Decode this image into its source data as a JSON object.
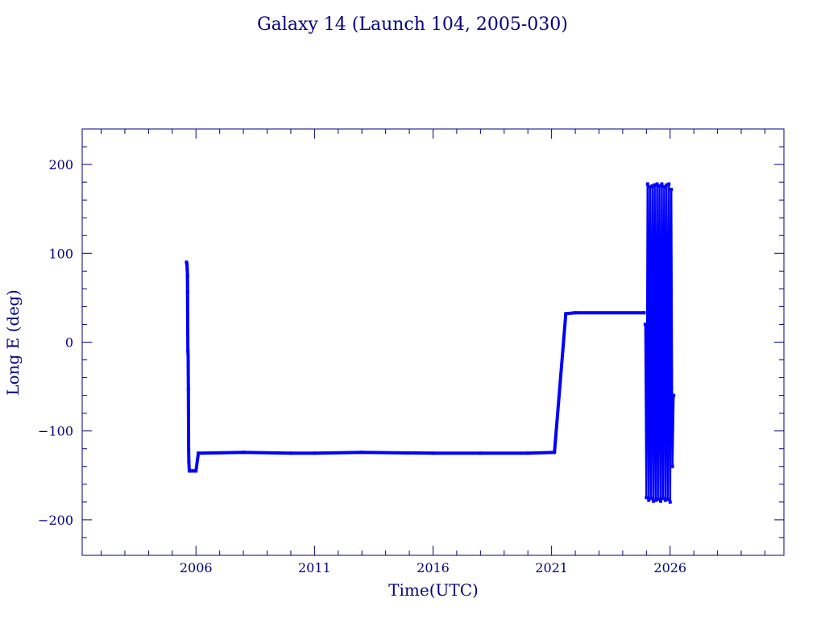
{
  "chart_data": {
    "type": "line",
    "title": "Galaxy 14 (Launch 104, 2005-030)",
    "xlabel": "Time(UTC)",
    "ylabel": "Long E (deg)",
    "xlim": [
      2001.2,
      2030.8
    ],
    "ylim": [
      -240,
      240
    ],
    "x_ticks": [
      2006,
      2011,
      2016,
      2021,
      2026
    ],
    "x_tick_labels": [
      "2006",
      "2011",
      "2016",
      "2021",
      "2026"
    ],
    "y_ticks": [
      200,
      100,
      0,
      -100,
      -200
    ],
    "y_tick_labels": [
      "200",
      "100",
      "0",
      "−100",
      "−200"
    ],
    "grid": false,
    "legend": "none",
    "colors": {
      "axis": "#000080",
      "series": "#0000ff"
    },
    "series": [
      {
        "x": [
          2005.6,
          2005.62,
          2005.63,
          2005.64,
          2005.645,
          2005.65,
          2005.66,
          2005.67,
          2005.68,
          2005.69,
          2005.7,
          2005.72,
          2005.8,
          2005.9,
          2006.0,
          2006.1,
          2008.0,
          2010.0,
          2011.0,
          2013.0,
          2016.0,
          2018.0,
          2020.0,
          2021.12,
          2021.6,
          2022.0,
          2024.9
        ],
        "y": [
          90,
          88,
          82,
          75,
          56,
          28,
          -10,
          -15,
          -53,
          -120,
          -135,
          -145,
          -145,
          -145,
          -145,
          -125,
          -124,
          -125,
          -125,
          -124,
          -125,
          -125,
          -125,
          -124,
          32,
          33,
          33
        ]
      },
      {
        "x": [
          2024.95,
          2025.0,
          2025.05,
          2025.1,
          2025.15,
          2025.2,
          2025.25,
          2025.3,
          2025.35,
          2025.4,
          2025.45,
          2025.5,
          2025.55,
          2025.6,
          2025.65,
          2025.7,
          2025.75,
          2025.8,
          2025.85,
          2025.9,
          2025.95,
          2026.0,
          2026.05,
          2026.1,
          2026.15
        ],
        "y": [
          20,
          -175,
          178,
          -178,
          175,
          -176,
          176,
          -179,
          177,
          -178,
          178,
          -177,
          176,
          -179,
          178,
          -176,
          175,
          -178,
          177,
          -177,
          178,
          -180,
          172,
          -140,
          -60
        ]
      }
    ]
  }
}
